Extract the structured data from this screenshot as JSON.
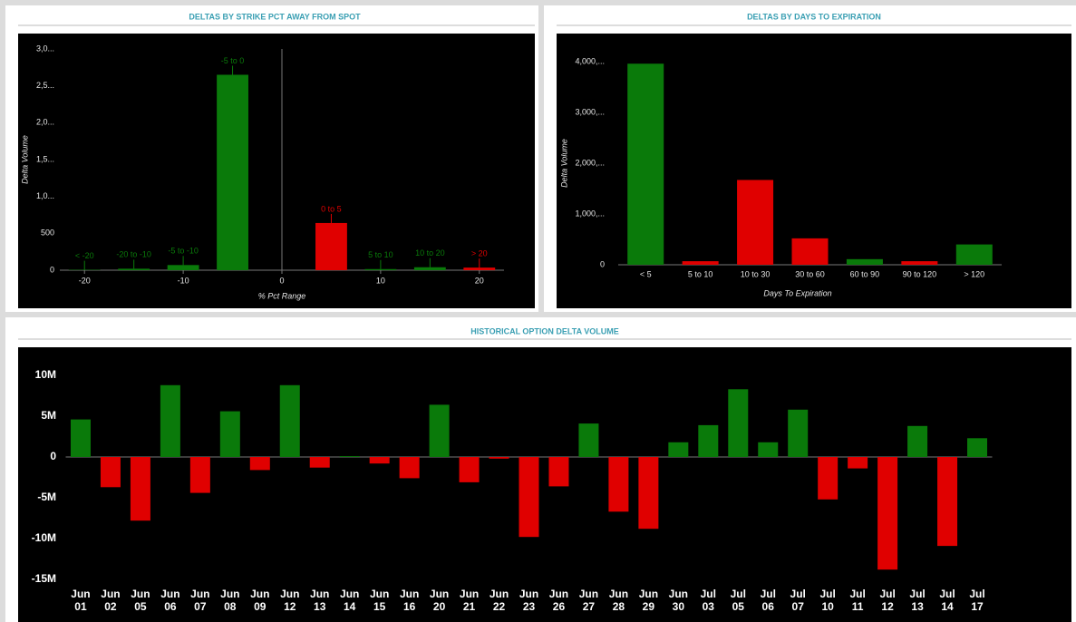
{
  "chart_data": [
    {
      "type": "bar",
      "title": "DELTAS BY STRIKE PCT AWAY FROM SPOT",
      "x": [
        -20,
        -15,
        -10,
        -5,
        5,
        10,
        15,
        20
      ],
      "labels": [
        "< -20",
        "-20 to -10",
        "-5 to -10",
        "-5 to 0",
        "0 to 5",
        "5 to 10",
        "10 to 20",
        "> 20"
      ],
      "values": [
        5,
        20,
        70,
        2650,
        640,
        15,
        40,
        35
      ],
      "colors": [
        "#0a7a0a",
        "#0a7a0a",
        "#0a7a0a",
        "#0a7a0a",
        "#e00000",
        "#0a7a0a",
        "#0a7a0a",
        "#e00000"
      ],
      "bar_width": 3.2,
      "xlabel": "% Pct Range",
      "ylabel": "Delta Volume",
      "xlim": [
        -22.5,
        22.5
      ],
      "xticks": [
        -20,
        -10,
        0,
        10,
        20
      ],
      "ylim": [
        0,
        3000
      ],
      "yticks": [
        0,
        500,
        {
          "value": 1000,
          "label": "1,0..."
        },
        {
          "value": 1500,
          "label": "1,5..."
        },
        {
          "value": 2000,
          "label": "2,0..."
        },
        {
          "value": 2500,
          "label": "2,5..."
        },
        {
          "value": 3000,
          "label": "3,0..."
        }
      ]
    },
    {
      "type": "bar",
      "title": "DELTAS BY DAYS TO EXPIRATION",
      "categories": [
        "< 5",
        "5 to 10",
        "10 to 30",
        "30 to 60",
        "60 to 90",
        "90 to 120",
        "> 120"
      ],
      "values": [
        3960,
        70,
        1670,
        520,
        110,
        70,
        400
      ],
      "colors": [
        "#0a7a0a",
        "#e00000",
        "#e00000",
        "#e00000",
        "#0a7a0a",
        "#e00000",
        "#0a7a0a"
      ],
      "xlabel": "Days To Expiration",
      "ylabel": "Delta Volume",
      "ylim": [
        0,
        4500
      ],
      "yticks": [
        0,
        {
          "value": 1000,
          "label": "1,000,..."
        },
        {
          "value": 2000,
          "label": "2,000,..."
        },
        {
          "value": 3000,
          "label": "3,000,..."
        },
        {
          "value": 4000,
          "label": "4,000,..."
        }
      ]
    },
    {
      "type": "bar",
      "title": "HISTORICAL OPTION DELTA VOLUME",
      "categories": [
        "Jun\n01",
        "Jun\n02",
        "Jun\n05",
        "Jun\n06",
        "Jun\n07",
        "Jun\n08",
        "Jun\n09",
        "Jun\n12",
        "Jun\n13",
        "Jun\n14",
        "Jun\n15",
        "Jun\n16",
        "Jun\n20",
        "Jun\n21",
        "Jun\n22",
        "Jun\n23",
        "Jun\n26",
        "Jun\n27",
        "Jun\n28",
        "Jun\n29",
        "Jun\n30",
        "Jul\n03",
        "Jul\n05",
        "Jul\n06",
        "Jul\n07",
        "Jul\n10",
        "Jul\n11",
        "Jul\n12",
        "Jul\n13",
        "Jul\n14",
        "Jul\n17"
      ],
      "values": [
        4600000,
        -3700000,
        -7800000,
        8800000,
        -4400000,
        5600000,
        -1600000,
        8800000,
        -1300000,
        100000,
        -800000,
        -2600000,
        6400000,
        -3100000,
        -200000,
        -9800000,
        -3600000,
        4100000,
        -6700000,
        -8800000,
        1800000,
        3900000,
        8300000,
        1800000,
        5800000,
        -5200000,
        -1400000,
        -13800000,
        3800000,
        -10900000,
        2300000
      ],
      "positive_color": "#0a7a0a",
      "negative_color": "#e00000",
      "ylim": [
        -15500000,
        13000000
      ],
      "yticks": [
        {
          "value": -15000000,
          "label": "-15M"
        },
        {
          "value": -10000000,
          "label": "-10M"
        },
        {
          "value": -5000000,
          "label": "-5M"
        },
        0,
        {
          "value": 5000000,
          "label": "5M"
        },
        {
          "value": 10000000,
          "label": "10M"
        }
      ]
    }
  ]
}
